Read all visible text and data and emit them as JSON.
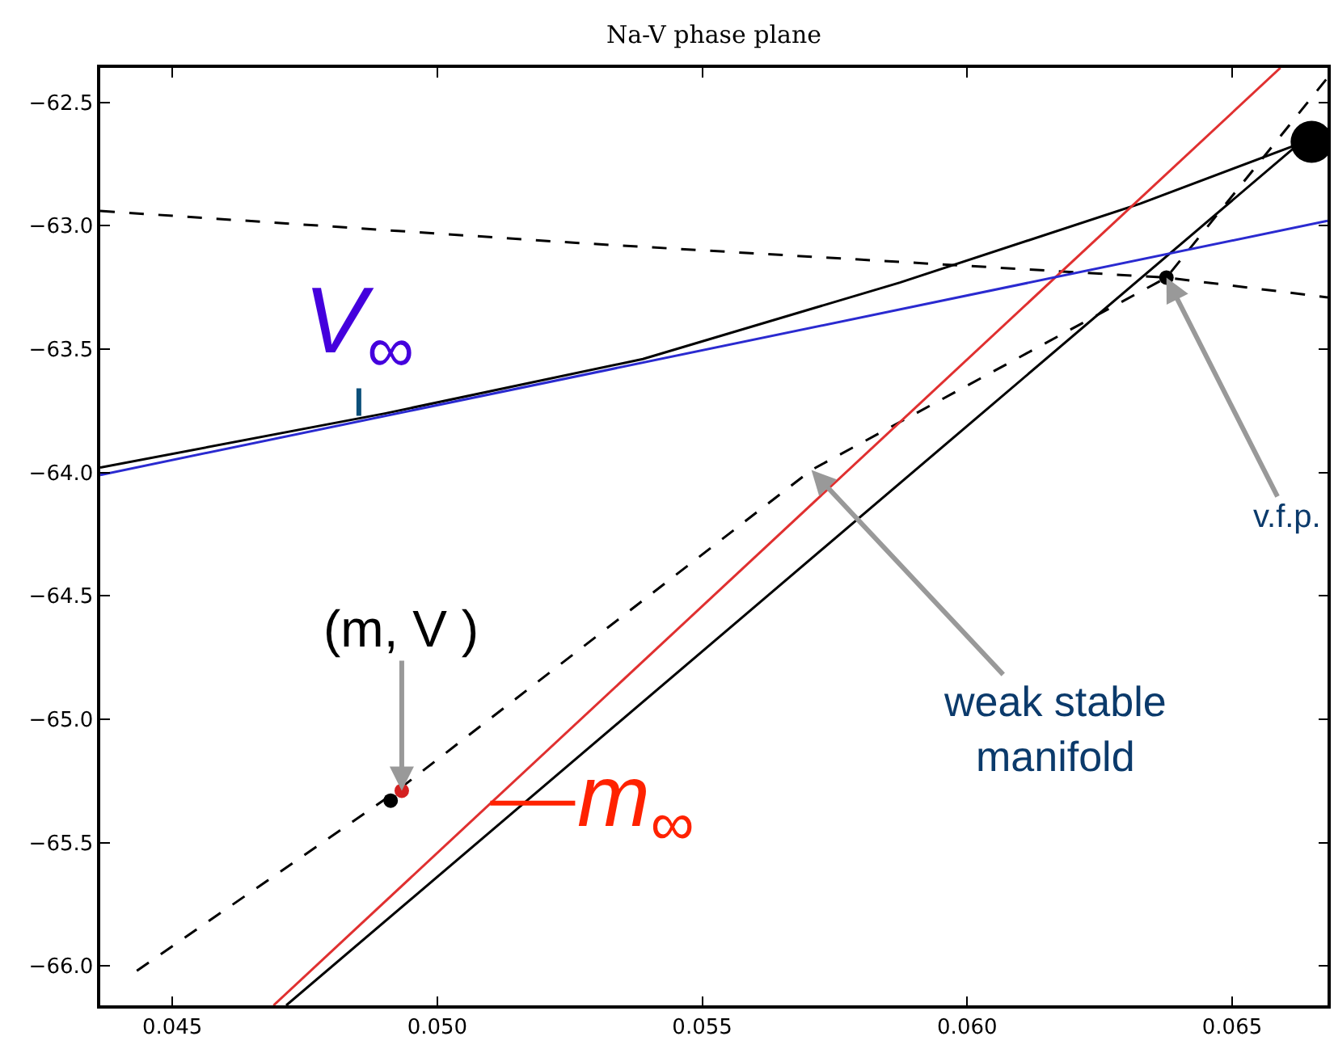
{
  "chart_data": {
    "type": "line",
    "title": "Na-V phase plane",
    "xlim": [
      0.04364,
      0.0668
    ],
    "ylim": [
      -66.16,
      -62.36
    ],
    "xticks": [
      0.045,
      {
        "value": 0.05,
        "label": "0.050"
      },
      0.055,
      {
        "value": 0.06,
        "label": "0.060"
      },
      0.065
    ],
    "yticks": [
      {
        "value": -62.5,
        "label": "−62.5"
      },
      {
        "value": -63.0,
        "label": "−63.0"
      },
      {
        "value": -63.5,
        "label": "−63.5"
      },
      {
        "value": -64.0,
        "label": "−64.0"
      },
      {
        "value": -64.5,
        "label": "−64.5"
      },
      {
        "value": -65.0,
        "label": "−65.0"
      },
      {
        "value": -65.5,
        "label": "−65.5"
      },
      {
        "value": -66.0,
        "label": "−66.0"
      }
    ],
    "series": [
      {
        "color": "#000000",
        "line_style": "dashed",
        "x": [
          0.04364,
          0.05267,
          0.06376,
          0.0668
        ],
        "values": [
          -62.94,
          -63.07,
          -63.21,
          -63.29
        ]
      },
      {
        "color": "#000000",
        "line_style": "dashed",
        "x": [
          0.04433,
          0.04918,
          0.05706,
          0.06376,
          0.0668
        ],
        "values": [
          -66.02,
          -65.3,
          -63.99,
          -63.21,
          -62.4
        ]
      },
      {
        "color": "#000000",
        "line_style": "solid",
        "x": [
          0.04364,
          0.04903,
          0.05388,
          0.05873,
          0.06327,
          0.06636
        ],
        "values": [
          -63.98,
          -63.76,
          -63.54,
          -63.23,
          -62.91,
          -62.66
        ]
      },
      {
        "color": "#000000",
        "line_style": "solid",
        "x": [
          0.04715,
          0.0663
        ],
        "values": [
          -66.16,
          -62.66
        ]
      },
      {
        "color": "#e03030",
        "line_style": "solid",
        "x": [
          0.04691,
          0.06591
        ],
        "values": [
          -66.16,
          -62.36
        ]
      },
      {
        "color": "#2a2ad0",
        "line_style": "solid",
        "x": [
          0.04364,
          0.0668
        ],
        "values": [
          -64.01,
          -62.98
        ]
      },
      {
        "type": "bubble",
        "color": "#000000",
        "marker": "circle",
        "x": [
          0.04912,
          0.06376,
          0.0665
        ],
        "values": [
          -65.33,
          -63.21,
          -62.66
        ],
        "sizes": [
          0.12,
          0.12,
          1
        ]
      },
      {
        "type": "scatter",
        "color": "#d42020",
        "marker": "circle",
        "x": [
          0.04933
        ],
        "values": [
          -65.29
        ]
      }
    ],
    "annotations": [
      {
        "text": "V$_{∞}$",
        "x": 0.04852,
        "y": -63.77
      },
      {
        "text": "m$_{∞}$",
        "x": 0.051,
        "y": -65.34
      },
      {
        "text": "(m, V )",
        "x": 0.04933,
        "y": -65.29
      },
      {
        "text": "v.f.p.",
        "x": 0.06376,
        "y": -63.21
      },
      {
        "text": "weak stable\nmanifold",
        "x": 0.05706,
        "y": -63.99
      }
    ]
  }
}
